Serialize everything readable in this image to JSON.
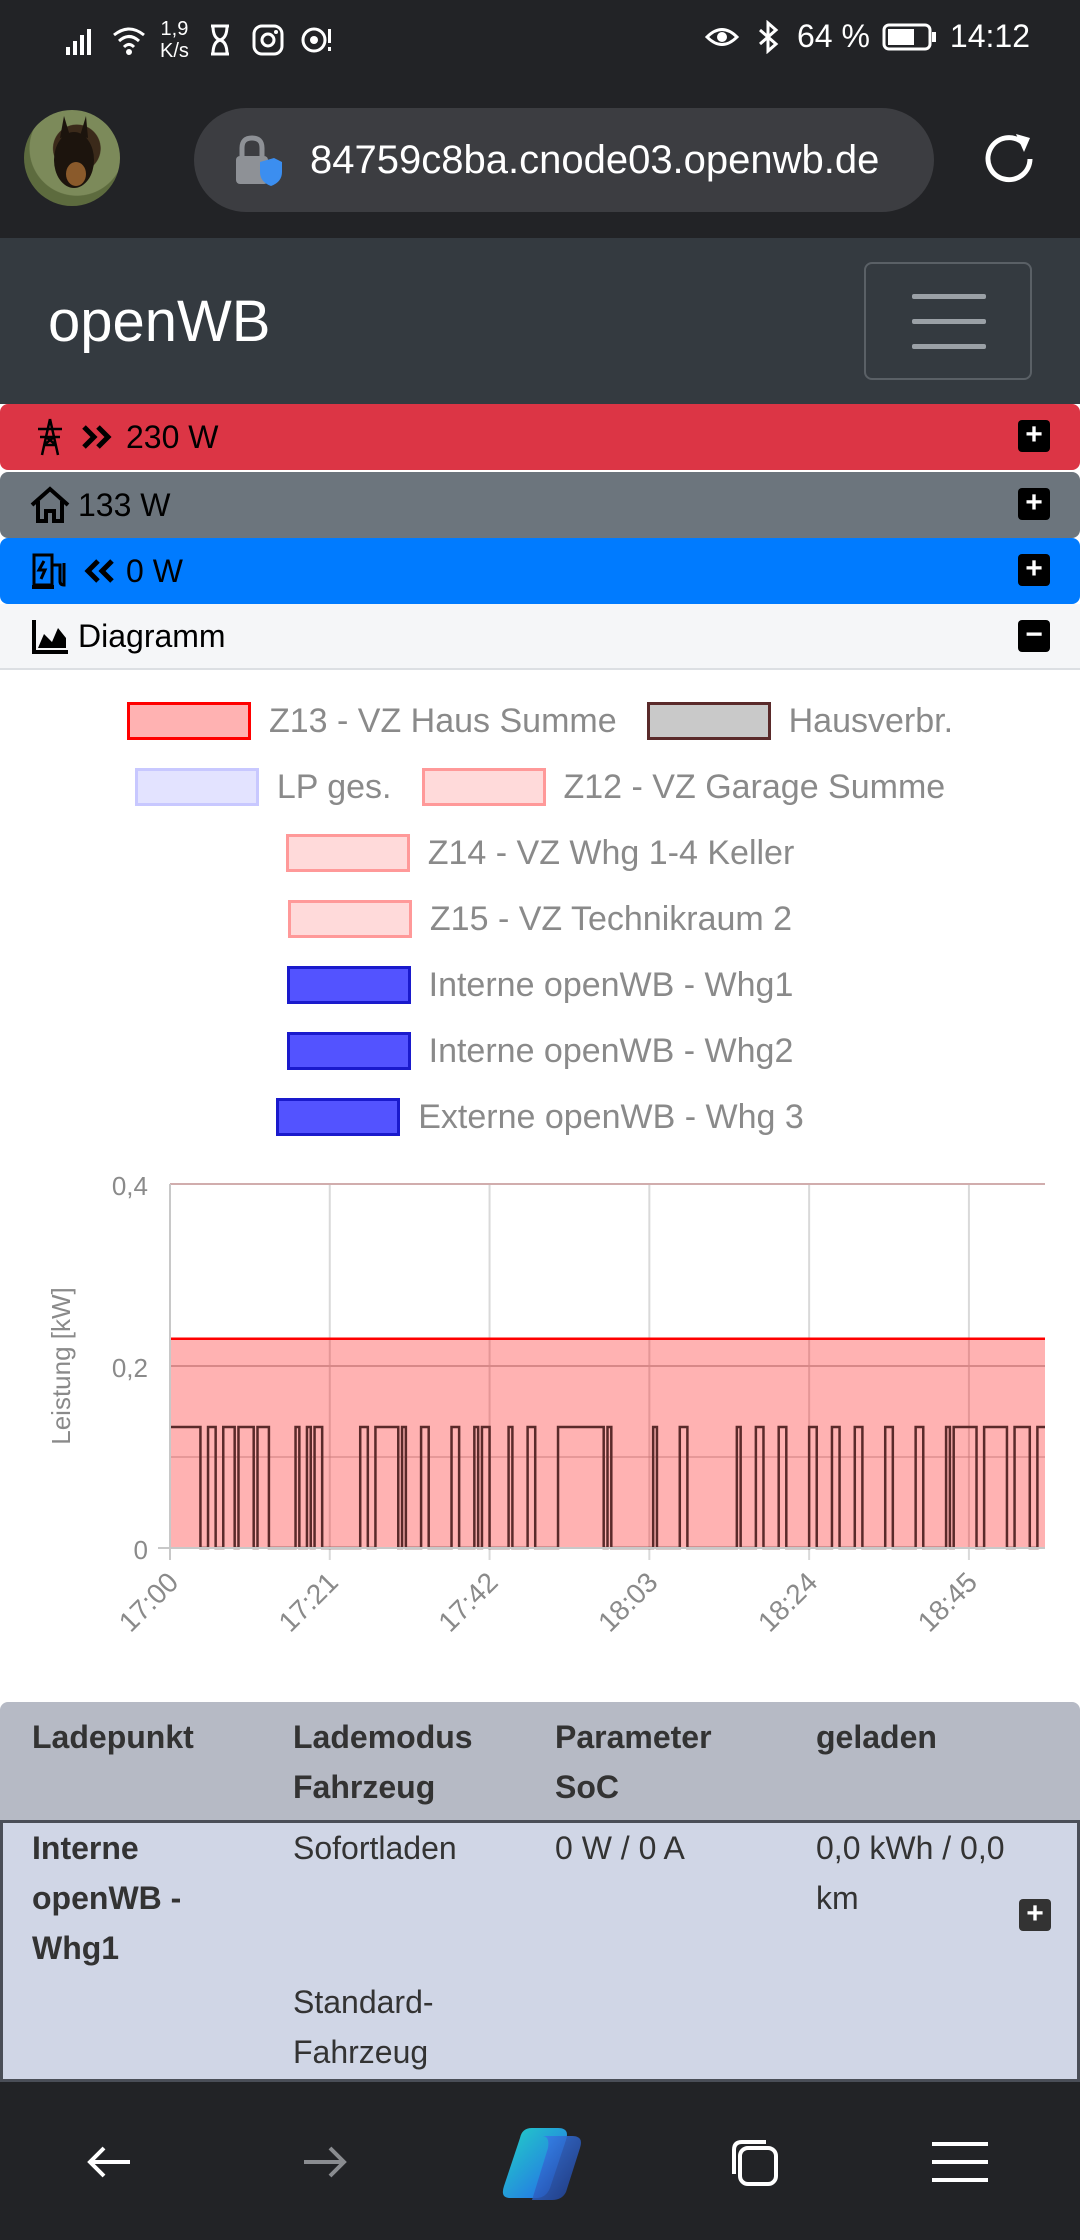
{
  "status_bar": {
    "net_speed_value": "1,9",
    "net_speed_unit": "K/s",
    "battery": "64 %",
    "time": "14:12",
    "icons": [
      "signal-icon",
      "wifi-icon",
      "hourglass-icon",
      "instagram-icon",
      "alarm-icon",
      "eye-icon",
      "bluetooth-icon",
      "battery-icon"
    ]
  },
  "browser": {
    "url": "84759c8ba.cnode03.openwb.de"
  },
  "navbar": {
    "brand": "openWB"
  },
  "strips": {
    "grid": {
      "label": "230 W",
      "color": "#dc3545"
    },
    "house": {
      "label": "133 W",
      "color": "#6c757d"
    },
    "charge": {
      "label": "0 W",
      "color": "#007bff"
    },
    "diagram": {
      "label": "Diagramm"
    }
  },
  "chart_data": {
    "type": "area",
    "ylabel": "Leistung [kW]",
    "ylim": [
      0,
      0.4
    ],
    "yticks": [
      "0,4",
      "0,2",
      "0"
    ],
    "xticks": [
      "17:00",
      "17:21",
      "17:42",
      "18:03",
      "18:24",
      "18:45"
    ],
    "x_range": [
      "17:00",
      "18:55"
    ],
    "grid": true,
    "legend_position": "top",
    "series": [
      {
        "name": "Z13 - VZ Haus Summe",
        "color": "#ff0000",
        "fill": "rgba(255,0,0,0.3)",
        "x": [
          "17:00",
          "18:55"
        ],
        "values": [
          0.23,
          0.23
        ]
      },
      {
        "name": "Hausverbr.",
        "color": "#5a2a2a",
        "fill": "rgba(120,120,120,0.4)",
        "square_wave": {
          "high": 0.133,
          "low": 0,
          "toggles_min": [
            0,
            4,
            5,
            6,
            7,
            8.5,
            9,
            11,
            11.5,
            13,
            16.5,
            17,
            18,
            18.5,
            19,
            20,
            25,
            26,
            27,
            30,
            30.5,
            31,
            33,
            34,
            37,
            38,
            40,
            40.5,
            41,
            42,
            44.5,
            45,
            47,
            48,
            51,
            57,
            57.5,
            58,
            63.5,
            64,
            67,
            68,
            74.5,
            75,
            77,
            78,
            80,
            81,
            84,
            85,
            87,
            88,
            90,
            91,
            94,
            95,
            98,
            99,
            102,
            102.5,
            103,
            106,
            107,
            110,
            111,
            113,
            114
          ]
        }
      },
      {
        "name": "LP ges.",
        "color": "#c8c8ff",
        "fill": "rgba(200,200,255,0.5)"
      },
      {
        "name": "Z12 - VZ Garage Summe",
        "color": "#ff9999",
        "fill": "rgba(255,150,150,0.35)"
      },
      {
        "name": "Z14 - VZ Whg 1-4 Keller",
        "color": "#ff9999",
        "fill": "rgba(255,150,150,0.35)"
      },
      {
        "name": "Z15 - VZ Technikraum 2",
        "color": "#ff9999",
        "fill": "rgba(255,150,150,0.35)"
      },
      {
        "name": "Interne openWB - Whg1",
        "color": "#1a1acc",
        "fill": "rgba(40,40,255,0.8)"
      },
      {
        "name": "Interne openWB - Whg2",
        "color": "#1a1acc",
        "fill": "rgba(40,40,255,0.8)"
      },
      {
        "name": "Externe openWB - Whg 3",
        "color": "#1a1acc",
        "fill": "rgba(40,40,255,0.8)"
      }
    ]
  },
  "table": {
    "headers": [
      [
        "Ladepunkt",
        ""
      ],
      [
        "Lademodus",
        "Fahrzeug"
      ],
      [
        "Parameter",
        "SoC"
      ],
      [
        "geladen",
        ""
      ]
    ],
    "row": {
      "ladepunkt": [
        "Interne",
        "openWB -",
        "Whg1"
      ],
      "lademodus": "Sofortladen",
      "fahrzeug": [
        "Standard-",
        "Fahrzeug"
      ],
      "parameter": "0 W / 0 A",
      "geladen": [
        "0,0 kWh / 0,0",
        "km"
      ]
    }
  }
}
